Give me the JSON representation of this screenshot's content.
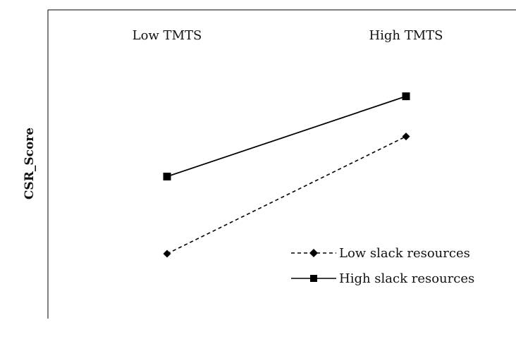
{
  "chart_data": {
    "type": "line",
    "title": "",
    "xlabel": "",
    "ylabel": "CSR_Score",
    "categories": [
      "Low TMTS",
      "High TMTS"
    ],
    "ylim": [
      0,
      10
    ],
    "grid": false,
    "legend_position": "bottom-right",
    "series": [
      {
        "name": "Low slack resources",
        "values": [
          2.1,
          5.9
        ],
        "line_style": "dashed",
        "marker": "diamond",
        "color": "#000000"
      },
      {
        "name": "High slack resources",
        "values": [
          4.6,
          7.2
        ],
        "line_style": "solid",
        "marker": "square",
        "color": "#000000"
      }
    ]
  }
}
